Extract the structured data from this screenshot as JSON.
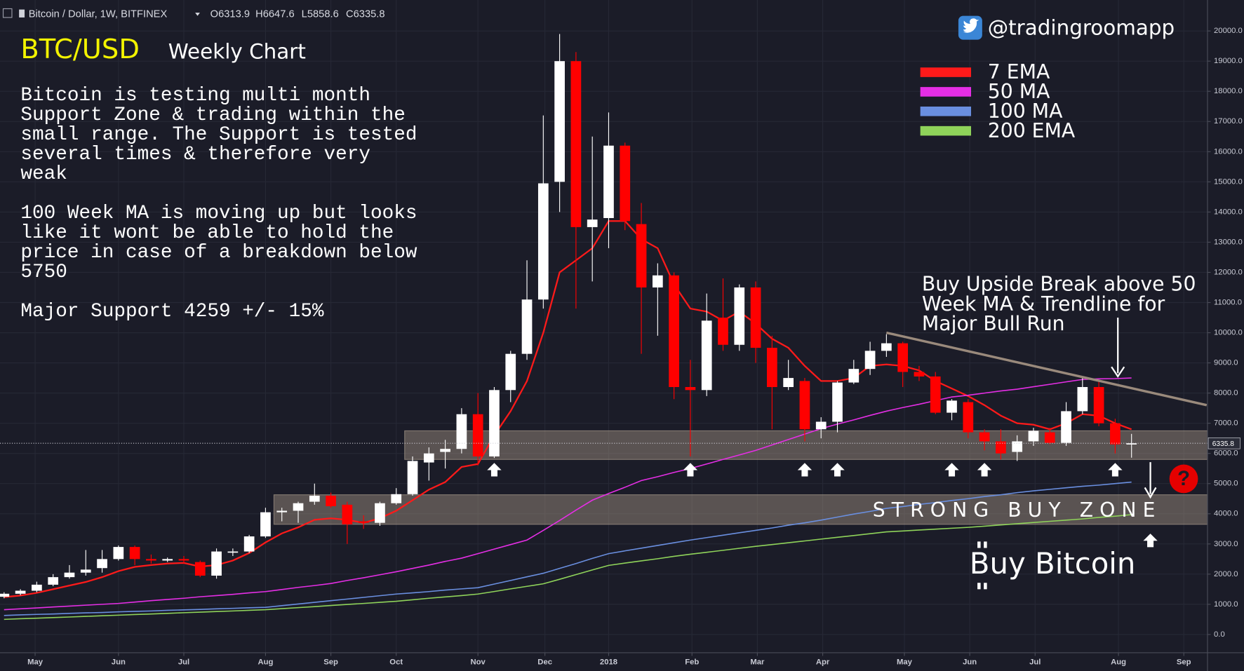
{
  "header": {
    "symbol": "Bitcoin / Dollar, 1W, BITFINEX",
    "open": "O6313.9",
    "high": "H6647.6",
    "low": "L5858.6",
    "close": "C6335.8"
  },
  "chart_data": {
    "type": "candlestick",
    "title": "BTC/USD",
    "subtitle": "Weekly Chart",
    "handle": "@tradingroomapp",
    "annotation": [
      [
        "Bitcoin is testing multi month",
        "Support Zone & trading within the",
        "small range. The Support is tested",
        "several times & therefore very",
        "weak"
      ],
      [
        "100 Week MA is moving up but looks",
        "like it wont be able to hold the",
        "price in case of a breakdown below",
        "5750"
      ],
      [
        "Major Support 4259 +/- 15%"
      ]
    ],
    "callout": [
      "Buy Upside Break above 50",
      "Week MA & Trendline for",
      "Major Bull Run"
    ],
    "footer": "Buy Bitcoin",
    "help_icon": "?",
    "up_color": "#ffffff",
    "down_color": "#ff0000",
    "ohlc": {
      "open": [
        1250,
        1350,
        1450,
        1650,
        1900,
        2050,
        2200,
        2500,
        2900,
        2500,
        2450,
        2500,
        2400,
        1950,
        2750,
        2750,
        3250,
        4050,
        4100,
        4400,
        4600,
        4300,
        3750,
        3700,
        4350,
        4650,
        5700,
        6050,
        6150,
        7300,
        5900,
        8100,
        9300,
        11100,
        15000,
        19000,
        13500,
        13800,
        16200,
        13600,
        11500,
        11900,
        8200,
        8100,
        10500,
        9600,
        11500,
        9500,
        8200,
        8400,
        6800,
        7050,
        8350,
        8800,
        9400,
        9650,
        8700,
        8550,
        7350,
        7700,
        6700,
        6400,
        6050,
        6400,
        6700,
        6350,
        7400,
        8200,
        7000,
        6313.9
      ],
      "high": [
        1400,
        1500,
        1750,
        2000,
        2300,
        2800,
        2800,
        2950,
        2950,
        2650,
        2550,
        2600,
        2450,
        2850,
        2850,
        3300,
        4200,
        4200,
        4400,
        5000,
        4700,
        4400,
        3950,
        4400,
        4850,
        5900,
        6200,
        6450,
        7500,
        8000,
        8200,
        9400,
        12400,
        17200,
        19900,
        19300,
        16500,
        17300,
        16300,
        14300,
        12300,
        12000,
        9100,
        11300,
        11800,
        11600,
        11700,
        9900,
        9100,
        8500,
        7200,
        8400,
        9100,
        9700,
        9950,
        9700,
        8900,
        8700,
        7800,
        7800,
        6800,
        6800,
        6600,
        6850,
        6850,
        7700,
        8500,
        8400,
        7150,
        6647.6
      ],
      "low": [
        1200,
        1300,
        1400,
        1600,
        1850,
        1950,
        2050,
        2450,
        2300,
        2350,
        2400,
        2350,
        1900,
        1850,
        2600,
        2700,
        3200,
        3750,
        3700,
        4300,
        4200,
        3000,
        3500,
        3600,
        4300,
        4600,
        5100,
        5500,
        6000,
        5600,
        5850,
        7700,
        9100,
        10800,
        14000,
        10800,
        11700,
        12800,
        13400,
        9300,
        9900,
        7800,
        5900,
        7900,
        9400,
        9400,
        9000,
        6800,
        8100,
        6400,
        6500,
        6700,
        8300,
        8600,
        9200,
        8200,
        8400,
        7300,
        7100,
        6500,
        6100,
        5800,
        5750,
        6250,
        6300,
        6250,
        7300,
        6900,
        6000,
        5858.6
      ],
      "close": [
        1350,
        1450,
        1650,
        1900,
        2050,
        2150,
        2500,
        2900,
        2500,
        2450,
        2500,
        2450,
        1950,
        2750,
        2750,
        3250,
        4050,
        4100,
        4350,
        4600,
        4250,
        3650,
        3700,
        4350,
        4650,
        5750,
        6000,
        6150,
        7300,
        5900,
        8100,
        9300,
        11100,
        14950,
        19000,
        13500,
        13750,
        16200,
        13700,
        11500,
        11900,
        8200,
        8100,
        10400,
        9600,
        11500,
        9500,
        8200,
        8500,
        6800,
        7050,
        8350,
        8800,
        9400,
        9650,
        8700,
        8550,
        7350,
        7750,
        6700,
        6400,
        6000,
        6400,
        6750,
        6350,
        7400,
        8200,
        7000,
        6300,
        6335.8
      ]
    },
    "series": [
      {
        "name": "7 EMA",
        "color": "#ff1a1a",
        "values": [
          1240,
          1290,
          1380,
          1500,
          1620,
          1740,
          1900,
          2100,
          2240,
          2300,
          2350,
          2370,
          2250,
          2300,
          2450,
          2700,
          3050,
          3350,
          3550,
          3800,
          3850,
          3800,
          3700,
          3850,
          4100,
          4450,
          4800,
          5050,
          5550,
          5650,
          6600,
          7400,
          8400,
          10000,
          12000,
          12400,
          12800,
          13700,
          13700,
          13100,
          12800,
          11600,
          10800,
          10700,
          10400,
          10700,
          10300,
          9800,
          9500,
          8900,
          8400,
          8400,
          8500,
          8900,
          8950,
          8900,
          8750,
          8400,
          8150,
          7900,
          7600,
          7250,
          7000,
          6950,
          6800,
          7000,
          7300,
          7250,
          7000,
          6800
        ]
      },
      {
        "name": "50 MA",
        "color": "#e52ee5",
        "values": [
          820,
          850,
          880,
          910,
          940,
          970,
          1000,
          1030,
          1075,
          1120,
          1160,
          1200,
          1250,
          1290,
          1330,
          1380,
          1420,
          1490,
          1560,
          1620,
          1690,
          1790,
          1880,
          1980,
          2080,
          2190,
          2300,
          2420,
          2530,
          2680,
          2830,
          2980,
          3130,
          3450,
          3780,
          4120,
          4450,
          4670,
          4880,
          5100,
          5230,
          5370,
          5500,
          5650,
          5800,
          5950,
          6100,
          6280,
          6460,
          6640,
          6820,
          6970,
          7110,
          7260,
          7400,
          7520,
          7630,
          7750,
          7870,
          7930,
          8000,
          8070,
          8130,
          8210,
          8290,
          8370,
          8450,
          8470,
          8480,
          8500
        ]
      },
      {
        "name": "100 MA",
        "color": "#6a8fe0",
        "values": [
          630,
          650,
          665,
          680,
          700,
          715,
          730,
          750,
          765,
          780,
          800,
          815,
          830,
          850,
          865,
          885,
          900,
          955,
          1010,
          1065,
          1120,
          1175,
          1230,
          1285,
          1340,
          1380,
          1420,
          1470,
          1510,
          1550,
          1670,
          1790,
          1910,
          2030,
          2190,
          2350,
          2520,
          2680,
          2770,
          2860,
          2950,
          3040,
          3130,
          3210,
          3290,
          3370,
          3450,
          3530,
          3620,
          3700,
          3790,
          3890,
          3990,
          4080,
          4180,
          4240,
          4310,
          4370,
          4440,
          4500,
          4570,
          4630,
          4700,
          4760,
          4810,
          4860,
          4910,
          4950,
          5000,
          5050
        ]
      },
      {
        "name": "200 EMA",
        "color": "#8fd35a",
        "values": [
          500,
          520,
          540,
          560,
          580,
          600,
          620,
          640,
          660,
          680,
          700,
          720,
          740,
          760,
          780,
          800,
          820,
          855,
          890,
          925,
          960,
          995,
          1030,
          1065,
          1100,
          1150,
          1200,
          1245,
          1290,
          1340,
          1425,
          1510,
          1595,
          1680,
          1830,
          1985,
          2140,
          2290,
          2365,
          2440,
          2510,
          2590,
          2660,
          2725,
          2790,
          2855,
          2920,
          2980,
          3040,
          3100,
          3160,
          3220,
          3280,
          3340,
          3400,
          3430,
          3460,
          3490,
          3520,
          3550,
          3590,
          3630,
          3670,
          3710,
          3750,
          3790,
          3830,
          3880,
          3920,
          3970
        ]
      }
    ],
    "zones": [
      {
        "low": 5800,
        "high": 6750,
        "from": 25
      },
      {
        "low": 3650,
        "high": 4630,
        "from": 17,
        "label": "STRONG BUY ZONE"
      }
    ],
    "trendline": {
      "x": [
        54,
        73.6
      ],
      "y": [
        10000,
        7600
      ],
      "color": "#9a8a7c"
    },
    "support_tests": [
      30,
      42,
      49,
      51,
      58,
      60,
      68
    ],
    "xlim": [
      -0.25,
      73.65
    ],
    "xticks": [
      {
        "value": 1.9,
        "label": "May"
      },
      {
        "value": 7.0,
        "label": "Jun"
      },
      {
        "value": 11.0,
        "label": "Jul"
      },
      {
        "value": 16.0,
        "label": "Aug"
      },
      {
        "value": 20.0,
        "label": "Sep"
      },
      {
        "value": 24.0,
        "label": "Oct"
      },
      {
        "value": 29.0,
        "label": "Nov"
      },
      {
        "value": 33.1,
        "label": "Dec"
      },
      {
        "value": 37.0,
        "label": "2018"
      },
      {
        "value": 42.1,
        "label": "Feb"
      },
      {
        "value": 46.1,
        "label": "Mar"
      },
      {
        "value": 50.1,
        "label": "Apr"
      },
      {
        "value": 55.1,
        "label": "May"
      },
      {
        "value": 59.1,
        "label": "Jun"
      },
      {
        "value": 63.1,
        "label": "Jul"
      },
      {
        "value": 68.2,
        "label": "Aug"
      },
      {
        "value": 72.2,
        "label": "Sep"
      }
    ],
    "ylim": [
      -605,
      21026
    ],
    "yticks": [
      {
        "value": 0,
        "label": "0.0"
      },
      {
        "value": 1000,
        "label": "1000.0"
      },
      {
        "value": 2000,
        "label": "2000.0"
      },
      {
        "value": 3000,
        "label": "3000.0"
      },
      {
        "value": 4000,
        "label": "4000.0"
      },
      {
        "value": 5000,
        "label": "5000.0"
      },
      {
        "value": 6000,
        "label": "6000.0"
      },
      {
        "value": 7000,
        "label": "7000.0"
      },
      {
        "value": 8000,
        "label": "8000.0"
      },
      {
        "value": 9000,
        "label": "9000.0"
      },
      {
        "value": 10000,
        "label": "10000.0"
      },
      {
        "value": 11000,
        "label": "11000.0"
      },
      {
        "value": 12000,
        "label": "12000.0"
      },
      {
        "value": 13000,
        "label": "13000.0"
      },
      {
        "value": 14000,
        "label": "14000.0"
      },
      {
        "value": 15000,
        "label": "15000.0"
      },
      {
        "value": 16000,
        "label": "16000.0"
      },
      {
        "value": 17000,
        "label": "17000.0"
      },
      {
        "value": 18000,
        "label": "18000.0"
      },
      {
        "value": 19000,
        "label": "19000.0"
      },
      {
        "value": 20000,
        "label": "20000.0"
      }
    ],
    "grid": true
  }
}
